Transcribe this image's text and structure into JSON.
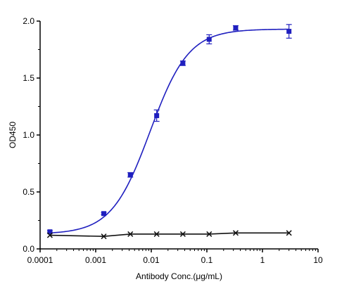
{
  "chart_data": {
    "type": "scatter",
    "xlabel": "Antibody Conc.(μg/mL)",
    "ylabel": "OD450",
    "xscale": "log",
    "xlim": [
      0.0001,
      10
    ],
    "ylim": [
      0,
      2.0
    ],
    "x_ticks": [
      "0.0001",
      "0.001",
      "0.01",
      "0.1",
      "1",
      "10"
    ],
    "y_ticks": [
      "0.0",
      "0.5",
      "1.0",
      "1.5",
      "2.0"
    ],
    "grid": false,
    "legend": "none",
    "series": [
      {
        "marker": "square",
        "color": "#1f1fbf",
        "fit": "sigmoidal",
        "points": [
          {
            "x": 0.00015,
            "y": 0.15,
            "err": 0.01
          },
          {
            "x": 0.0014,
            "y": 0.31,
            "err": 0.01
          },
          {
            "x": 0.0042,
            "y": 0.65,
            "err": 0.02
          },
          {
            "x": 0.0125,
            "y": 1.17,
            "err": 0.05
          },
          {
            "x": 0.037,
            "y": 1.63,
            "err": 0.02
          },
          {
            "x": 0.11,
            "y": 1.84,
            "err": 0.04
          },
          {
            "x": 0.33,
            "y": 1.94,
            "err": 0.02
          },
          {
            "x": 3.0,
            "y": 1.91,
            "err": 0.06
          }
        ],
        "curve": {
          "bottom": 0.13,
          "top": 1.93,
          "ec50": 0.0095,
          "hill": 1.25
        }
      },
      {
        "marker": "x",
        "color": "#111111",
        "fit": "line",
        "points": [
          {
            "x": 0.00015,
            "y": 0.12
          },
          {
            "x": 0.0014,
            "y": 0.11
          },
          {
            "x": 0.0042,
            "y": 0.13
          },
          {
            "x": 0.0125,
            "y": 0.13
          },
          {
            "x": 0.037,
            "y": 0.13
          },
          {
            "x": 0.11,
            "y": 0.13
          },
          {
            "x": 0.33,
            "y": 0.14
          },
          {
            "x": 3.0,
            "y": 0.14
          }
        ]
      }
    ]
  }
}
